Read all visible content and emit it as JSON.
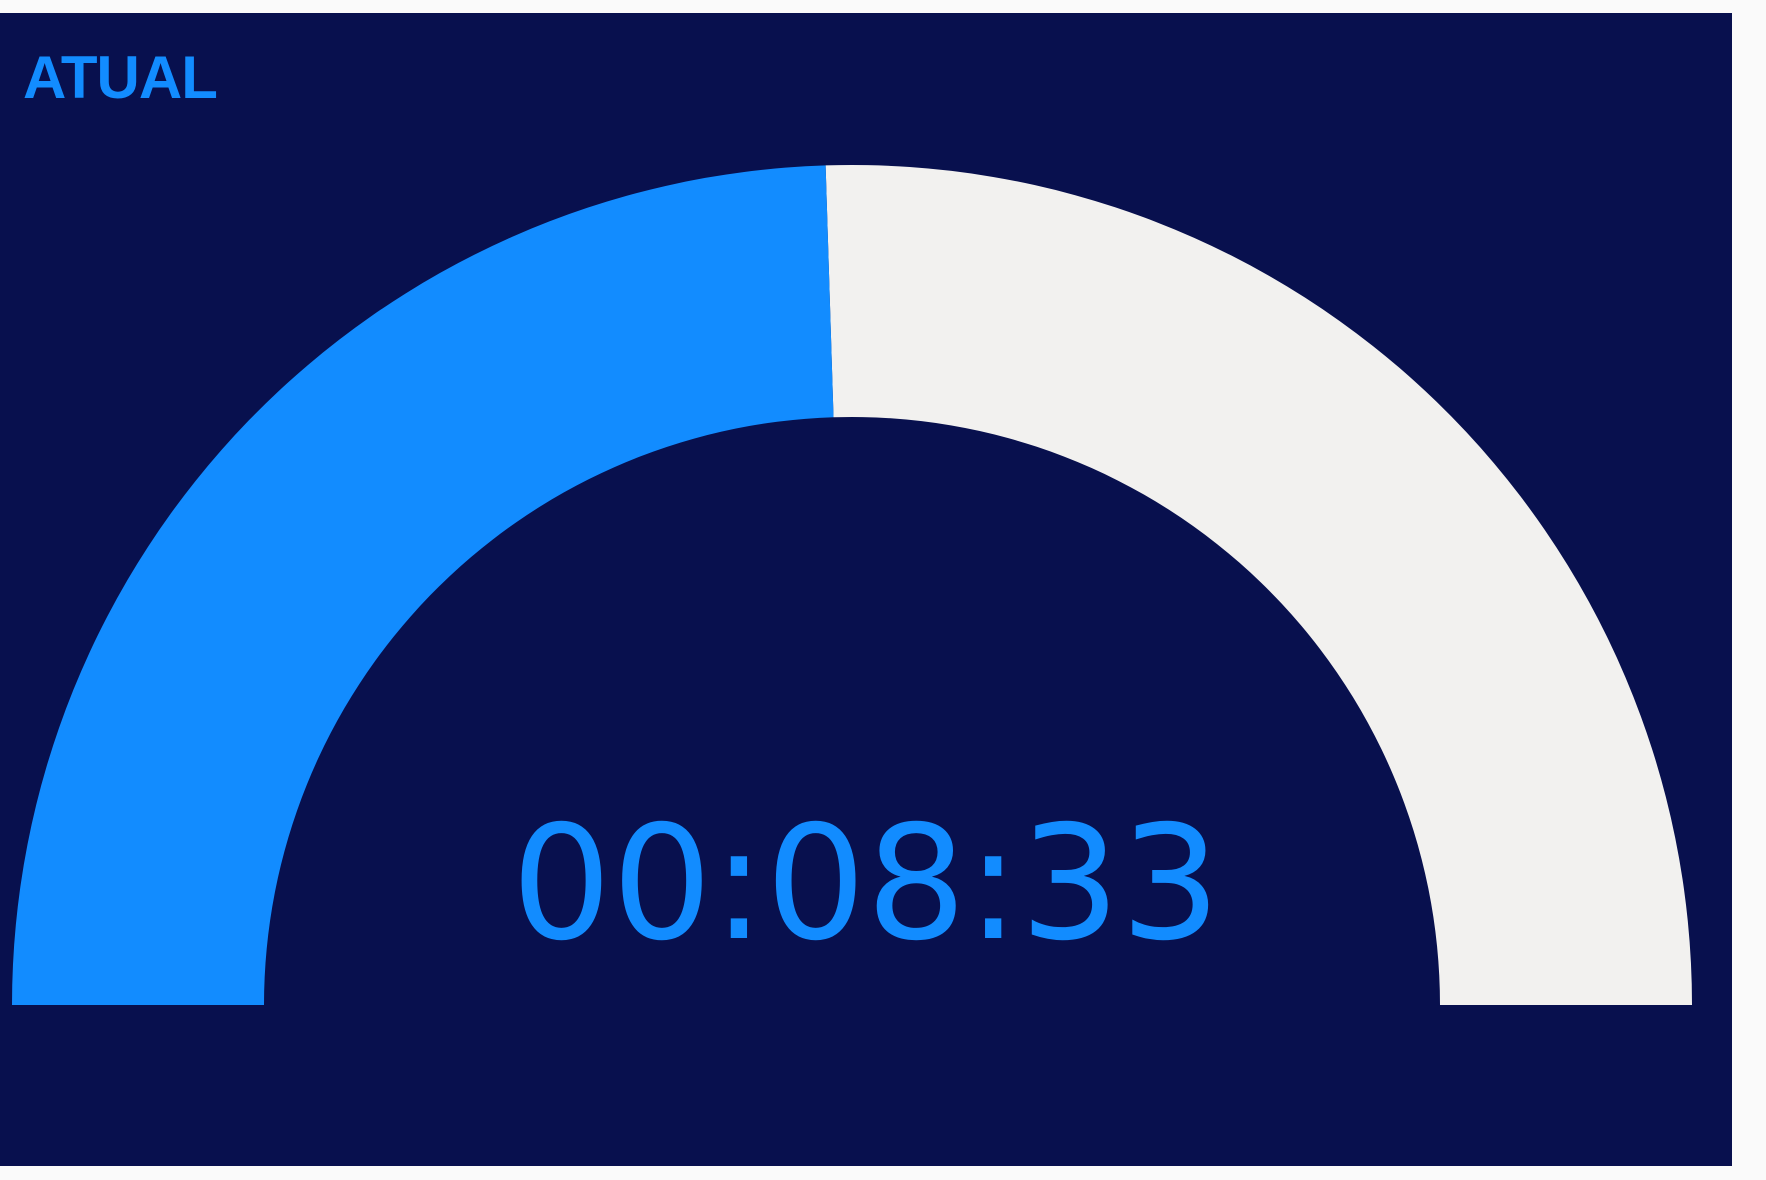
{
  "panel": {
    "title": "ATUAL"
  },
  "gauge": {
    "progress": 0.49,
    "colors": {
      "background": "#08104e",
      "filled": "#128cff",
      "remaining": "#f2f1ef",
      "text": "#128cff"
    }
  },
  "timer": {
    "value": "00:08:33"
  }
}
